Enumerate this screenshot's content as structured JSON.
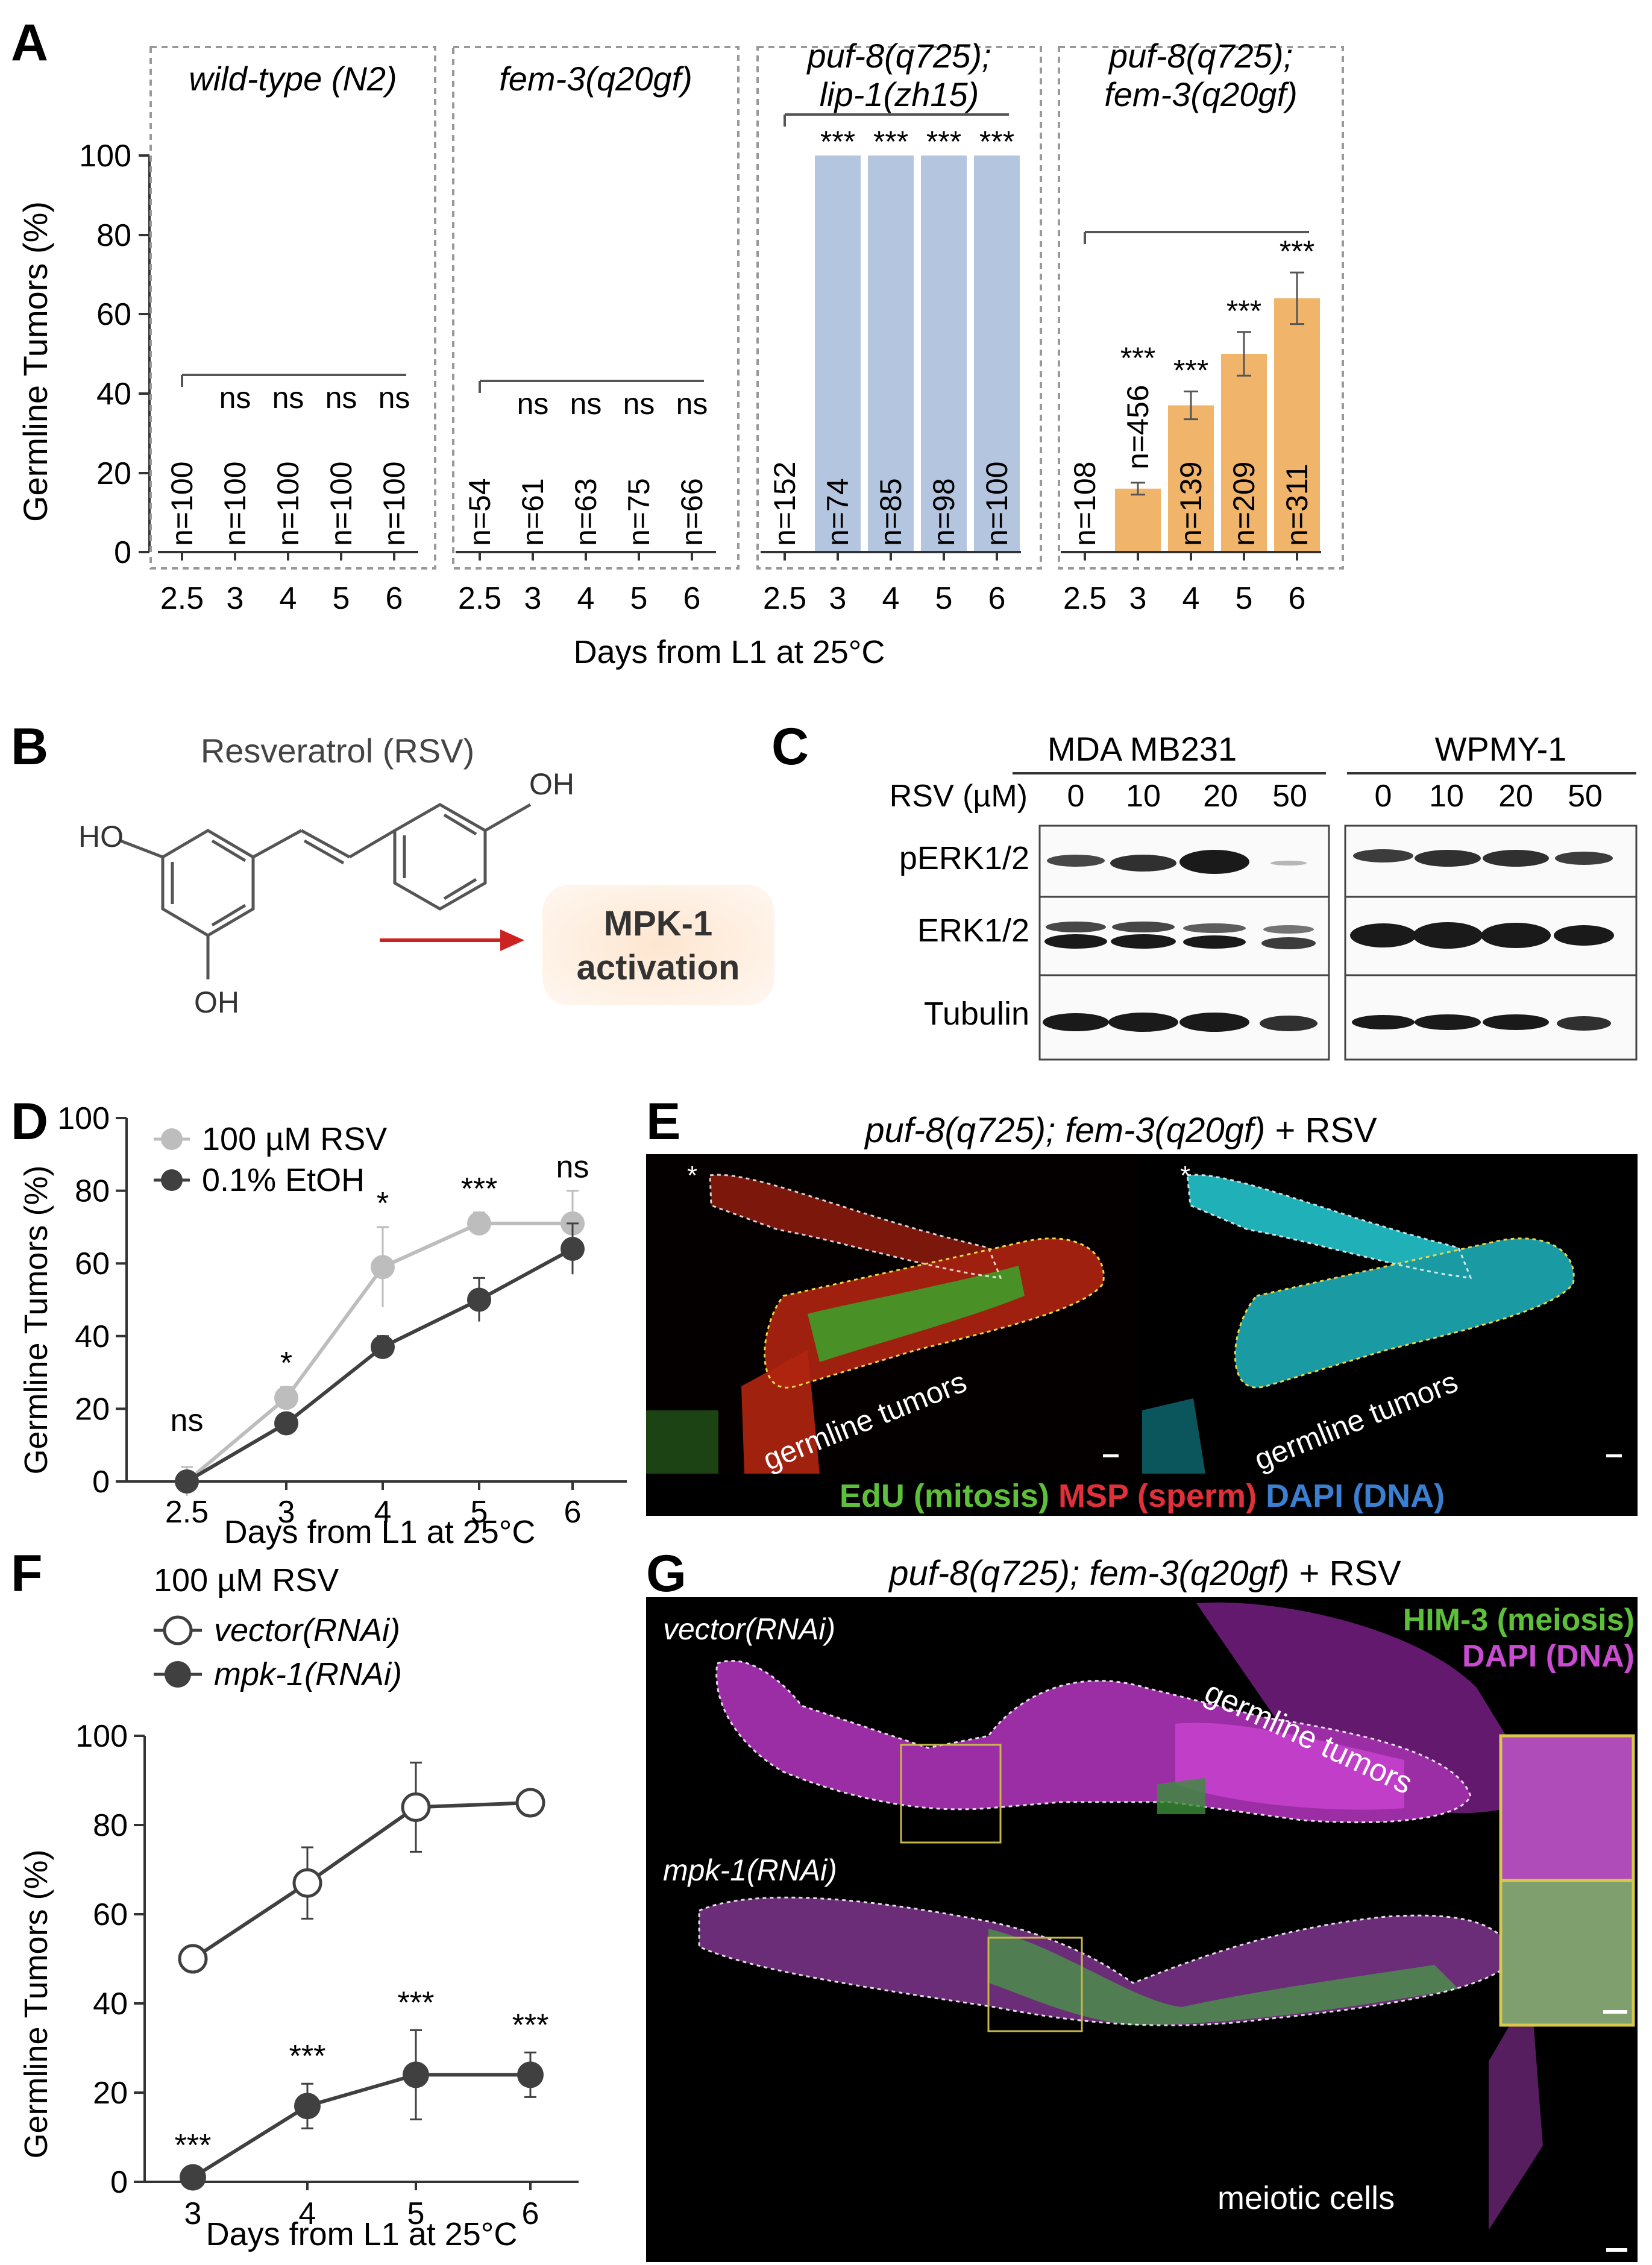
{
  "panel_letters": [
    "A",
    "B",
    "C",
    "D",
    "E",
    "F",
    "G"
  ],
  "colors": {
    "blue_bar": "#b4c6df",
    "orange_bar": "#f0b46b",
    "gray_line": "#bdbdbd",
    "dark_line": "#404040",
    "red_arrow": "#cc2222",
    "mpk_box": "#fbe4cf"
  },
  "panel_a": {
    "ylabel": "Germline Tumors (%)",
    "xlabel": "Days from L1 at 25°C",
    "yticks": [
      "0",
      "20",
      "40",
      "60",
      "80",
      "100"
    ],
    "groups": [
      {
        "title": [
          "wild-type (N2)"
        ],
        "days": [
          "2.5",
          "3",
          "4",
          "5",
          "6"
        ],
        "values": [
          0,
          0,
          0,
          0,
          0
        ],
        "n": [
          "n=100",
          "n=100",
          "n=100",
          "n=100",
          "n=100"
        ],
        "sig": [
          "",
          "ns",
          "ns",
          "ns",
          "ns"
        ],
        "errors": [
          0,
          0,
          0,
          0,
          0
        ],
        "bar_color": "none"
      },
      {
        "title": [
          "fem-3(q20gf)"
        ],
        "days": [
          "2.5",
          "3",
          "4",
          "5",
          "6"
        ],
        "values": [
          0,
          0,
          0,
          0,
          0
        ],
        "n": [
          "n=54",
          "n=61",
          "n=63",
          "n=75",
          "n=66"
        ],
        "sig": [
          "",
          "ns",
          "ns",
          "ns",
          "ns"
        ],
        "errors": [
          0,
          0,
          0,
          0,
          0
        ],
        "bar_color": "none"
      },
      {
        "title": [
          "puf-8(q725);",
          "lip-1(zh15)"
        ],
        "days": [
          "2.5",
          "3",
          "4",
          "5",
          "6"
        ],
        "values": [
          0,
          100,
          100,
          100,
          100
        ],
        "n": [
          "n=152",
          "n=74",
          "n=85",
          "n=98",
          "n=100"
        ],
        "sig": [
          "",
          "***",
          "***",
          "***",
          "***"
        ],
        "errors": [
          0,
          0,
          0,
          0,
          0
        ],
        "bar_color": "blue"
      },
      {
        "title": [
          "puf-8(q725);",
          "fem-3(q20gf)"
        ],
        "days": [
          "2.5",
          "3",
          "4",
          "5",
          "6"
        ],
        "values": [
          0,
          16,
          37,
          50,
          64
        ],
        "n": [
          "n=108",
          "n=456",
          "n=139",
          "n=209",
          "n=311"
        ],
        "sig": [
          "",
          "***",
          "***",
          "***",
          "***"
        ],
        "errors": [
          0,
          1.5,
          3.5,
          5.5,
          6.5
        ],
        "bar_color": "orange"
      }
    ]
  },
  "panel_b": {
    "title": "Resveratrol (RSV)",
    "oh_top": "OH",
    "ho_left": "HO",
    "oh_bottom": "OH",
    "box_line1": "MPK-1",
    "box_line2": "activation"
  },
  "panel_c": {
    "rsv_label": "RSV (µM)",
    "cell_lines": [
      "MDA MB231",
      "WPMY-1"
    ],
    "doses": [
      "0",
      "10",
      "20",
      "50"
    ],
    "rows": [
      "pERK1/2",
      "ERK1/2",
      "Tubulin"
    ]
  },
  "panel_d": {
    "ylabel": "Germline Tumors (%)",
    "xlabel": "Days from L1 at 25°C",
    "yticks": [
      "0",
      "20",
      "40",
      "60",
      "80",
      "100"
    ],
    "legend": [
      "100 µM RSV",
      "0.1% EtOH"
    ],
    "sig": [
      "ns",
      "*",
      "*",
      "***",
      "ns"
    ]
  },
  "panel_e": {
    "title_italic": "puf-8(q725); fem-3(q20gf)",
    "title_rest": " + RSV",
    "caption": "germline tumors",
    "asterisk": "*",
    "legend_green": "EdU (mitosis)",
    "legend_red": "MSP (sperm)",
    "legend_blue": "DAPI (DNA)"
  },
  "panel_f": {
    "header": "100 µM RSV",
    "ylabel": "Germline Tumors (%)",
    "xlabel": "Days from L1 at 25°C",
    "yticks": [
      "0",
      "20",
      "40",
      "60",
      "80",
      "100"
    ],
    "legend": [
      "vector(RNAi)",
      "mpk-1(RNAi)"
    ],
    "sig": [
      "***",
      "***",
      "***",
      "***"
    ]
  },
  "panel_g": {
    "title_italic": "puf-8(q725); fem-3(q20gf)",
    "title_rest": " + RSV",
    "label_top": "vector(RNAi)",
    "label_bottom": "mpk-1(RNAi)",
    "legend_green": "HIM-3 (meiosis)",
    "legend_magenta": "DAPI (DNA)",
    "caption_top": "germline tumors",
    "caption_bottom": "meiotic cells"
  },
  "chart_data": [
    {
      "type": "bar",
      "panel": "A",
      "ylabel": "Germline Tumors (%)",
      "xlabel": "Days from L1 at 25°C",
      "ylim": [
        0,
        100
      ],
      "categories": [
        "2.5",
        "3",
        "4",
        "5",
        "6"
      ],
      "series": [
        {
          "name": "wild-type (N2)",
          "values": [
            0,
            0,
            0,
            0,
            0
          ]
        },
        {
          "name": "fem-3(q20gf)",
          "values": [
            0,
            0,
            0,
            0,
            0
          ]
        },
        {
          "name": "puf-8(q725); lip-1(zh15)",
          "values": [
            0,
            100,
            100,
            100,
            100
          ]
        },
        {
          "name": "puf-8(q725); fem-3(q20gf)",
          "values": [
            0,
            16,
            37,
            50,
            64
          ]
        }
      ]
    },
    {
      "type": "line",
      "panel": "D",
      "ylabel": "Germline Tumors (%)",
      "xlabel": "Days from L1 at 25°C",
      "ylim": [
        0,
        100
      ],
      "x": [
        "2.5",
        "3",
        "4",
        "5",
        "6"
      ],
      "series": [
        {
          "name": "100 µM RSV",
          "values": [
            0,
            23,
            59,
            71,
            71
          ],
          "errors": [
            4,
            3,
            11,
            3,
            9
          ]
        },
        {
          "name": "0.1% EtOH",
          "values": [
            0,
            16,
            37,
            50,
            64
          ],
          "errors": [
            0,
            2,
            3,
            6,
            7
          ]
        }
      ]
    },
    {
      "type": "line",
      "panel": "F",
      "ylabel": "Germline Tumors (%)",
      "xlabel": "Days from L1 at 25°C",
      "ylim": [
        0,
        100
      ],
      "x": [
        "3",
        "4",
        "5",
        "6"
      ],
      "series": [
        {
          "name": "vector(RNAi)",
          "values": [
            50,
            67,
            84,
            85
          ],
          "errors": [
            2,
            8,
            10,
            2
          ]
        },
        {
          "name": "mpk-1(RNAi)",
          "values": [
            1,
            17,
            24,
            24
          ],
          "errors": [
            1,
            5,
            10,
            5
          ]
        }
      ]
    }
  ]
}
